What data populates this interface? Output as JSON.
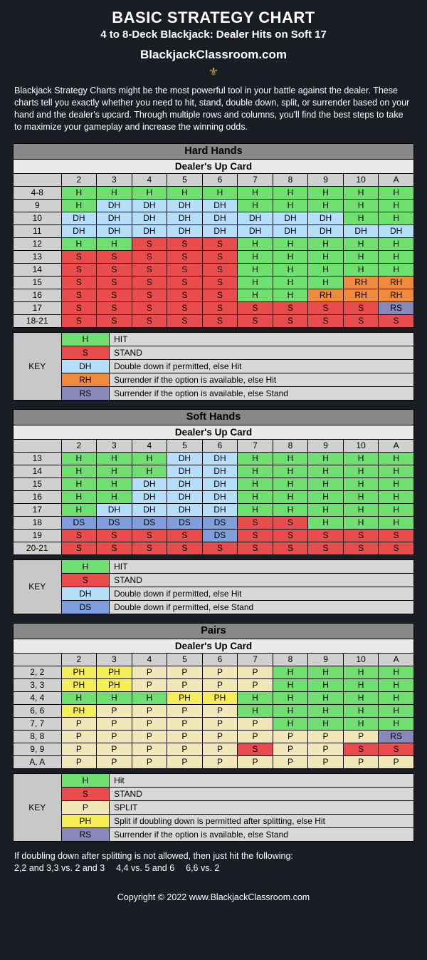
{
  "title": "BASIC STRATEGY CHART",
  "subtitle": "4 to 8-Deck Blackjack: Dealer Hits on Soft 17",
  "brand": "BlackjackClassroom.com",
  "intro": "Blackjack Strategy Charts might be the most powerful tool in your battle against the dealer. These charts tell you exactly whether you need to hit, stand, double down, split, or surrender based on your hand and the dealer's upcard. Through multiple rows and columns, you'll find the best steps to take to maximize your gameplay and increase the winning odds.",
  "colors": {
    "H": "#6fe06f",
    "S": "#e84c4c",
    "DH": "#b5defa",
    "RH": "#f08a3c",
    "RS": "#8a88bb",
    "DS": "#7f9fdc",
    "P": "#f2e7b7",
    "PH": "#f6ee56"
  },
  "columns": [
    "2",
    "3",
    "4",
    "5",
    "6",
    "7",
    "8",
    "9",
    "10",
    "A"
  ],
  "dealer_label": "Dealer's Up Card",
  "sections": [
    {
      "name": "Hard Hands",
      "rows": [
        {
          "label": "4-8",
          "cells": [
            "H",
            "H",
            "H",
            "H",
            "H",
            "H",
            "H",
            "H",
            "H",
            "H"
          ]
        },
        {
          "label": "9",
          "cells": [
            "H",
            "DH",
            "DH",
            "DH",
            "DH",
            "H",
            "H",
            "H",
            "H",
            "H"
          ]
        },
        {
          "label": "10",
          "cells": [
            "DH",
            "DH",
            "DH",
            "DH",
            "DH",
            "DH",
            "DH",
            "DH",
            "H",
            "H"
          ]
        },
        {
          "label": "11",
          "cells": [
            "DH",
            "DH",
            "DH",
            "DH",
            "DH",
            "DH",
            "DH",
            "DH",
            "DH",
            "DH"
          ]
        },
        {
          "label": "12",
          "cells": [
            "H",
            "H",
            "S",
            "S",
            "S",
            "H",
            "H",
            "H",
            "H",
            "H"
          ]
        },
        {
          "label": "13",
          "cells": [
            "S",
            "S",
            "S",
            "S",
            "S",
            "H",
            "H",
            "H",
            "H",
            "H"
          ]
        },
        {
          "label": "14",
          "cells": [
            "S",
            "S",
            "S",
            "S",
            "S",
            "H",
            "H",
            "H",
            "H",
            "H"
          ]
        },
        {
          "label": "15",
          "cells": [
            "S",
            "S",
            "S",
            "S",
            "S",
            "H",
            "H",
            "H",
            "RH",
            "RH"
          ]
        },
        {
          "label": "16",
          "cells": [
            "S",
            "S",
            "S",
            "S",
            "S",
            "H",
            "H",
            "RH",
            "RH",
            "RH"
          ]
        },
        {
          "label": "17",
          "cells": [
            "S",
            "S",
            "S",
            "S",
            "S",
            "S",
            "S",
            "S",
            "S",
            "RS"
          ]
        },
        {
          "label": "18-21",
          "cells": [
            "S",
            "S",
            "S",
            "S",
            "S",
            "S",
            "S",
            "S",
            "S",
            "S"
          ]
        }
      ],
      "key": [
        {
          "code": "H",
          "desc": "HIT"
        },
        {
          "code": "S",
          "desc": "STAND"
        },
        {
          "code": "DH",
          "desc": "Double down if permitted, else Hit"
        },
        {
          "code": "RH",
          "desc": "Surrender if the option is available, else Hit"
        },
        {
          "code": "RS",
          "desc": "Surrender if the option is available, else Stand"
        }
      ]
    },
    {
      "name": "Soft Hands",
      "rows": [
        {
          "label": "13",
          "cells": [
            "H",
            "H",
            "H",
            "DH",
            "DH",
            "H",
            "H",
            "H",
            "H",
            "H"
          ]
        },
        {
          "label": "14",
          "cells": [
            "H",
            "H",
            "H",
            "DH",
            "DH",
            "H",
            "H",
            "H",
            "H",
            "H"
          ]
        },
        {
          "label": "15",
          "cells": [
            "H",
            "H",
            "DH",
            "DH",
            "DH",
            "H",
            "H",
            "H",
            "H",
            "H"
          ]
        },
        {
          "label": "16",
          "cells": [
            "H",
            "H",
            "DH",
            "DH",
            "DH",
            "H",
            "H",
            "H",
            "H",
            "H"
          ]
        },
        {
          "label": "17",
          "cells": [
            "H",
            "DH",
            "DH",
            "DH",
            "DH",
            "H",
            "H",
            "H",
            "H",
            "H"
          ]
        },
        {
          "label": "18",
          "cells": [
            "DS",
            "DS",
            "DS",
            "DS",
            "DS",
            "S",
            "S",
            "H",
            "H",
            "H"
          ]
        },
        {
          "label": "19",
          "cells": [
            "S",
            "S",
            "S",
            "S",
            "DS",
            "S",
            "S",
            "S",
            "S",
            "S"
          ]
        },
        {
          "label": "20-21",
          "cells": [
            "S",
            "S",
            "S",
            "S",
            "S",
            "S",
            "S",
            "S",
            "S",
            "S"
          ]
        }
      ],
      "key": [
        {
          "code": "H",
          "desc": "HIT"
        },
        {
          "code": "S",
          "desc": "STAND"
        },
        {
          "code": "DH",
          "desc": "Double down if permitted, else Hit"
        },
        {
          "code": "DS",
          "desc": "Double down if permitted, else Stand"
        }
      ]
    },
    {
      "name": "Pairs",
      "rows": [
        {
          "label": "2, 2",
          "cells": [
            "PH",
            "PH",
            "P",
            "P",
            "P",
            "P",
            "H",
            "H",
            "H",
            "H"
          ]
        },
        {
          "label": "3, 3",
          "cells": [
            "PH",
            "PH",
            "P",
            "P",
            "P",
            "P",
            "H",
            "H",
            "H",
            "H"
          ]
        },
        {
          "label": "4, 4",
          "cells": [
            "H",
            "H",
            "H",
            "PH",
            "PH",
            "H",
            "H",
            "H",
            "H",
            "H"
          ]
        },
        {
          "label": "6, 6",
          "cells": [
            "PH",
            "P",
            "P",
            "P",
            "P",
            "H",
            "H",
            "H",
            "H",
            "H"
          ]
        },
        {
          "label": "7, 7",
          "cells": [
            "P",
            "P",
            "P",
            "P",
            "P",
            "P",
            "H",
            "H",
            "H",
            "H"
          ]
        },
        {
          "label": "8, 8",
          "cells": [
            "P",
            "P",
            "P",
            "P",
            "P",
            "P",
            "P",
            "P",
            "P",
            "RS"
          ]
        },
        {
          "label": "9, 9",
          "cells": [
            "P",
            "P",
            "P",
            "P",
            "P",
            "S",
            "P",
            "P",
            "S",
            "S"
          ]
        },
        {
          "label": "A, A",
          "cells": [
            "P",
            "P",
            "P",
            "P",
            "P",
            "P",
            "P",
            "P",
            "P",
            "P"
          ]
        }
      ],
      "key": [
        {
          "code": "H",
          "desc": "Hit"
        },
        {
          "code": "S",
          "desc": "STAND"
        },
        {
          "code": "P",
          "desc": "SPLIT"
        },
        {
          "code": "PH",
          "desc": "Split if doubling down is permitted after splitting, else Hit"
        },
        {
          "code": "RS",
          "desc": "Surrender if the option is available, else Stand"
        }
      ]
    }
  ],
  "key_label": "KEY",
  "footnote_line1": "If doubling down after splitting is not allowed, then just hit the following:",
  "footnote_line2": "2,2 and 3,3 vs. 2 and 3  4,4 vs. 5 and 6  6,6 vs. 2",
  "copyright": "Copyright © 2022 www.BlackjackClassroom.com"
}
